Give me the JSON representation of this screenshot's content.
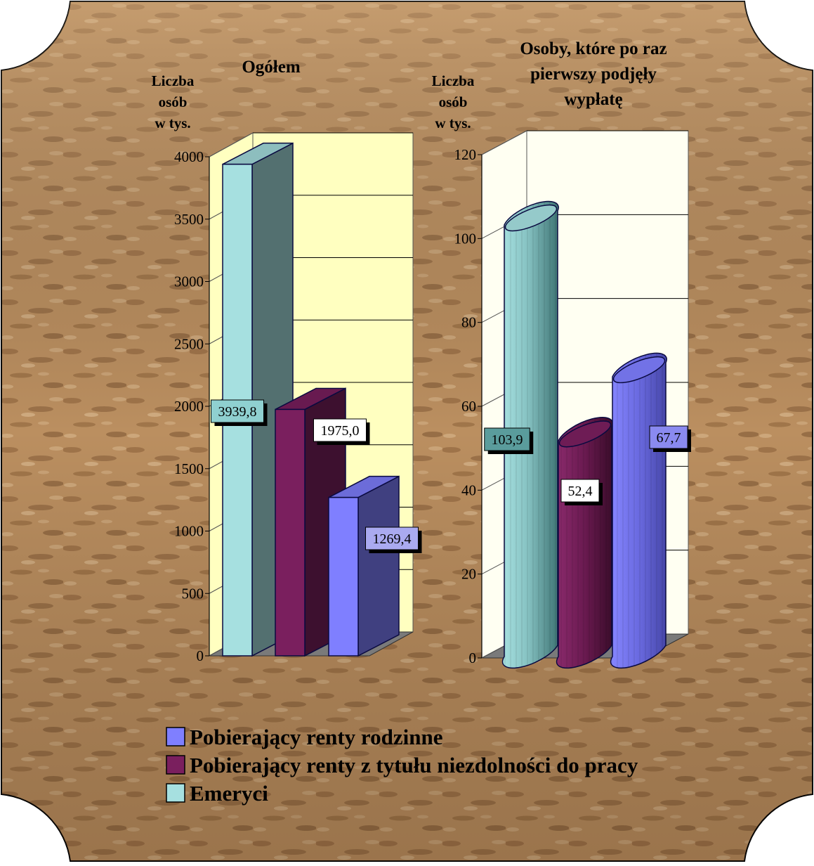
{
  "colors": {
    "emeryci": "#a6e0e0",
    "niezdolnosc": "#7a1f5e",
    "rodzinne": "#7f7fff",
    "wall_left": "#ffffc0",
    "wall_right": "#fffff2",
    "floor": "#7a7a7a",
    "background": "#b98d5e"
  },
  "chart_data": [
    {
      "type": "bar",
      "style": "3d-box",
      "title": "Ogółem",
      "ylabel": [
        "Liczba",
        "osób",
        "w tys."
      ],
      "ylim": [
        0,
        4000
      ],
      "yticks": [
        0,
        500,
        1000,
        1500,
        2000,
        2500,
        3000,
        3500,
        4000
      ],
      "grid": true,
      "series": [
        {
          "key": "emeryci",
          "value": 3939.8,
          "label": "3939,8"
        },
        {
          "key": "niezdolnosc",
          "value": 1975.0,
          "label": "1975,0"
        },
        {
          "key": "rodzinne",
          "value": 1269.4,
          "label": "1269,4"
        }
      ]
    },
    {
      "type": "bar",
      "style": "3d-cylinder",
      "title": [
        "Osoby, które po raz",
        "pierwszy podjęły",
        "wypłatę"
      ],
      "ylabel": [
        "Liczba",
        "osób",
        "w tys."
      ],
      "ylim": [
        0,
        120
      ],
      "yticks": [
        0,
        20,
        40,
        60,
        80,
        100,
        120
      ],
      "grid": true,
      "series": [
        {
          "key": "emeryci",
          "value": 103.9,
          "label": "103,9"
        },
        {
          "key": "niezdolnosc",
          "value": 52.4,
          "label": "52,4"
        },
        {
          "key": "rodzinne",
          "value": 67.7,
          "label": "67,7"
        }
      ]
    }
  ],
  "legend": {
    "placement": "bottom",
    "items": [
      {
        "key": "rodzinne",
        "label": "Pobierający renty rodzinne"
      },
      {
        "key": "niezdolnosc",
        "label": "Pobierający renty z tytułu niezdolności do pracy"
      },
      {
        "key": "emeryci",
        "label": "Emeryci"
      }
    ]
  }
}
